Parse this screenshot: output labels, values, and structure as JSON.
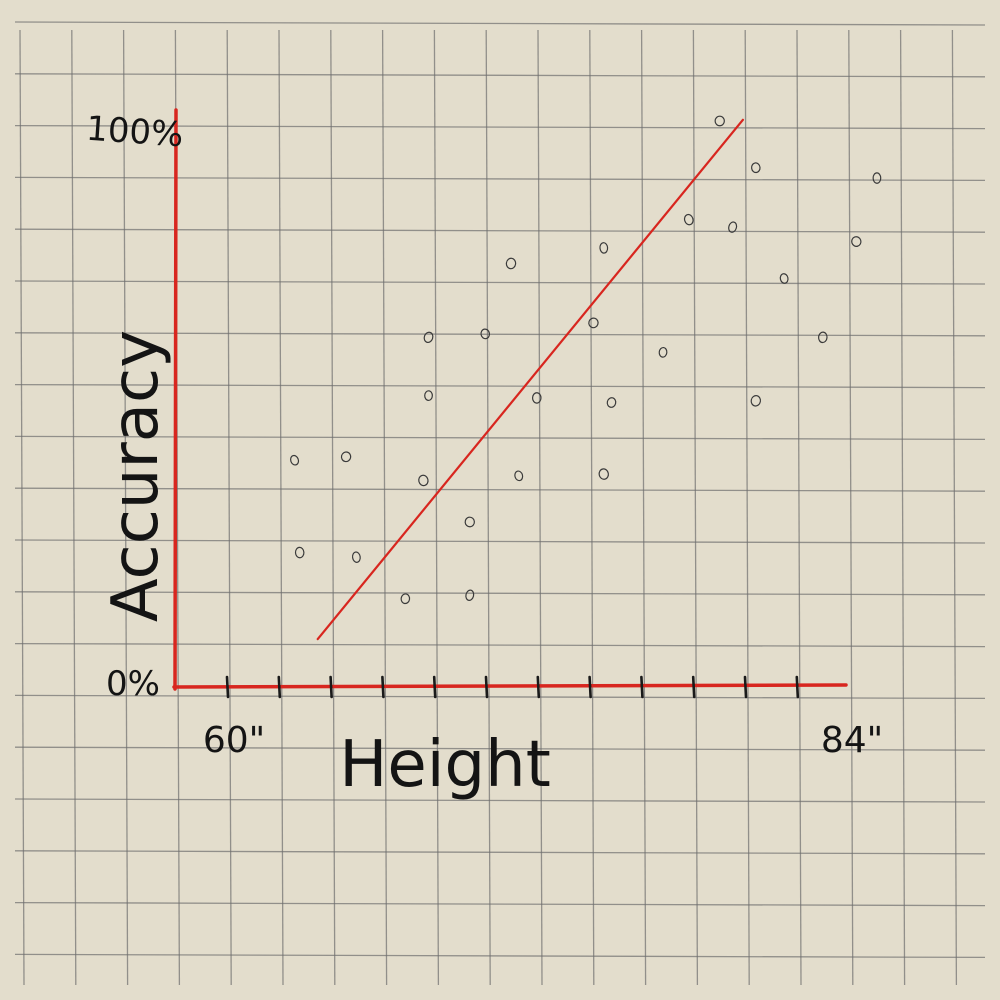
{
  "chart_data": {
    "type": "scatter",
    "xlabel": "Height",
    "ylabel": "Accuracy",
    "x_tick_labels": {
      "min": "60\"",
      "max": "84\""
    },
    "y_tick_labels": {
      "min": "0%",
      "max": "100%"
    },
    "xlim": [
      58,
      84
    ],
    "ylim": [
      0,
      100
    ],
    "grid": true,
    "colors": {
      "axes": "#d8261f",
      "trend": "#d8261f",
      "points": "#3a3a3a",
      "grid": "#6e6e6e"
    },
    "points": [
      [
        62.6,
        39.3
      ],
      [
        62.8,
        23.3
      ],
      [
        64.6,
        39.9
      ],
      [
        65.0,
        22.5
      ],
      [
        66.9,
        15.3
      ],
      [
        67.6,
        35.8
      ],
      [
        67.8,
        50.5
      ],
      [
        67.8,
        60.6
      ],
      [
        69.4,
        28.6
      ],
      [
        69.4,
        15.9
      ],
      [
        70.0,
        61.2
      ],
      [
        71.0,
        73.4
      ],
      [
        71.3,
        36.6
      ],
      [
        72.0,
        50.1
      ],
      [
        74.2,
        63.1
      ],
      [
        74.6,
        76.1
      ],
      [
        74.9,
        49.3
      ],
      [
        74.6,
        36.9
      ],
      [
        76.9,
        58.0
      ],
      [
        77.9,
        81.0
      ],
      [
        79.1,
        98.1
      ],
      [
        79.6,
        79.7
      ],
      [
        80.5,
        90.0
      ],
      [
        80.5,
        49.6
      ],
      [
        81.6,
        70.8
      ],
      [
        83.1,
        60.6
      ],
      [
        84.4,
        77.2
      ],
      [
        85.2,
        88.2
      ]
    ],
    "trend_line": {
      "start": [
        63.5,
        8.3
      ],
      "end": [
        80.0,
        98.3
      ]
    }
  }
}
